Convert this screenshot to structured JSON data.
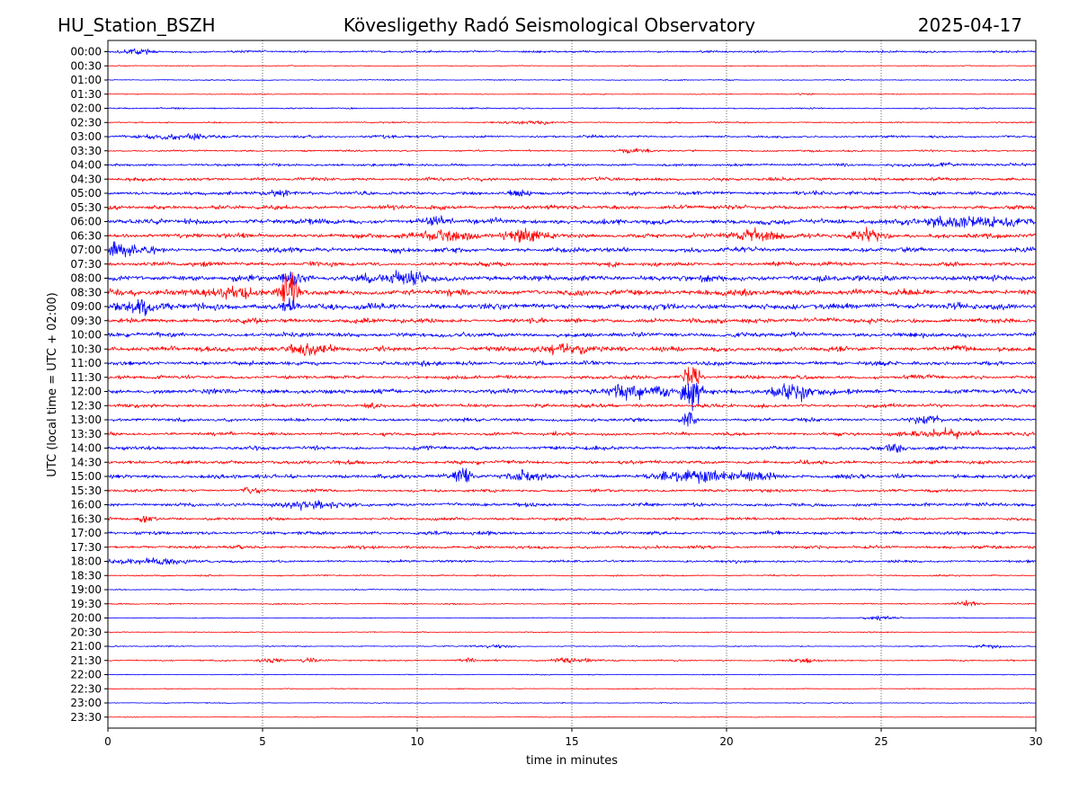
{
  "header": {
    "station": "HU_Station_BSZH",
    "observatory": "Kövesligethy Radó Seismological Observatory",
    "date": "2025-04-17"
  },
  "colors": {
    "even_trace": "#0000ff",
    "odd_trace": "#ff0000",
    "grid": "#000000",
    "background": "#ffffff"
  },
  "chart_data": {
    "type": "line",
    "xlabel": "time in minutes",
    "ylabel": "UTC (local time = UTC + 02:00)",
    "xlim": [
      0,
      30
    ],
    "x_ticks": [
      "0",
      "5",
      "10",
      "15",
      "20",
      "25",
      "30"
    ],
    "grid": "vertical dotted lines at 5, 10, 15, 20, 25",
    "row_labels": [
      "00:00",
      "00:30",
      "01:00",
      "01:30",
      "02:00",
      "02:30",
      "03:00",
      "03:30",
      "04:00",
      "04:30",
      "05:00",
      "05:30",
      "06:00",
      "06:30",
      "07:00",
      "07:30",
      "08:00",
      "08:30",
      "09:00",
      "09:30",
      "10:00",
      "10:30",
      "11:00",
      "11:30",
      "12:00",
      "12:30",
      "13:00",
      "13:30",
      "14:00",
      "14:30",
      "15:00",
      "15:30",
      "16:00",
      "16:30",
      "17:00",
      "17:30",
      "18:00",
      "18:30",
      "19:00",
      "19:30",
      "20:00",
      "20:30",
      "21:00",
      "21:30",
      "22:00",
      "22:30",
      "23:00",
      "23:30"
    ],
    "trace_colors": "alternating blue (full hour) and red (half hour)",
    "noise_level": [
      1.2,
      0.5,
      0.6,
      0.5,
      0.8,
      0.8,
      1.3,
      1.0,
      1.5,
      1.8,
      2.0,
      2.3,
      2.8,
      2.6,
      2.6,
      2.3,
      3.0,
      3.2,
      3.3,
      2.6,
      2.4,
      2.6,
      2.3,
      2.0,
      2.6,
      2.0,
      1.9,
      1.9,
      2.0,
      2.0,
      2.3,
      1.6,
      1.9,
      1.6,
      1.9,
      1.7,
      1.4,
      0.8,
      0.7,
      0.7,
      0.5,
      0.5,
      0.6,
      0.8,
      0.5,
      0.5,
      0.5,
      0.4
    ],
    "events": [
      {
        "row": 0,
        "minute": 0.9,
        "amp": 3,
        "width": 0.6
      },
      {
        "row": 3,
        "minute": 22.5,
        "amp": 1.5,
        "width": 0.3
      },
      {
        "row": 5,
        "minute": 13.8,
        "amp": 2,
        "width": 0.8
      },
      {
        "row": 6,
        "minute": 2.5,
        "amp": 3,
        "width": 1.2
      },
      {
        "row": 6,
        "minute": 9.0,
        "amp": 2,
        "width": 0.5
      },
      {
        "row": 7,
        "minute": 17.0,
        "amp": 2,
        "width": 0.5
      },
      {
        "row": 8,
        "minute": 27.0,
        "amp": 2,
        "width": 0.6
      },
      {
        "row": 10,
        "minute": 5.5,
        "amp": 3,
        "width": 0.5
      },
      {
        "row": 10,
        "minute": 13.2,
        "amp": 3,
        "width": 0.3
      },
      {
        "row": 12,
        "minute": 28.0,
        "amp": 5,
        "width": 2.0
      },
      {
        "row": 12,
        "minute": 10.5,
        "amp": 4,
        "width": 0.5
      },
      {
        "row": 13,
        "minute": 11.0,
        "amp": 7,
        "width": 0.8
      },
      {
        "row": 13,
        "minute": 13.5,
        "amp": 6,
        "width": 0.7
      },
      {
        "row": 13,
        "minute": 21.0,
        "amp": 6,
        "width": 0.8
      },
      {
        "row": 13,
        "minute": 24.5,
        "amp": 6,
        "width": 0.5
      },
      {
        "row": 14,
        "minute": 0.5,
        "amp": 6,
        "width": 0.8
      },
      {
        "row": 16,
        "minute": 6.0,
        "amp": 8,
        "width": 0.4
      },
      {
        "row": 16,
        "minute": 9.5,
        "amp": 6,
        "width": 1.0
      },
      {
        "row": 17,
        "minute": 5.9,
        "amp": 22,
        "width": 0.25
      },
      {
        "row": 17,
        "minute": 4.0,
        "amp": 5,
        "width": 1.0
      },
      {
        "row": 18,
        "minute": 1.0,
        "amp": 7,
        "width": 0.8
      },
      {
        "row": 18,
        "minute": 5.9,
        "amp": 8,
        "width": 0.3
      },
      {
        "row": 21,
        "minute": 6.5,
        "amp": 6,
        "width": 0.7
      },
      {
        "row": 21,
        "minute": 15.0,
        "amp": 5,
        "width": 1.0
      },
      {
        "row": 23,
        "minute": 18.9,
        "amp": 14,
        "width": 0.25
      },
      {
        "row": 24,
        "minute": 18.9,
        "amp": 22,
        "width": 0.3
      },
      {
        "row": 24,
        "minute": 17.0,
        "amp": 8,
        "width": 1.0
      },
      {
        "row": 24,
        "minute": 22.2,
        "amp": 8,
        "width": 0.8
      },
      {
        "row": 25,
        "minute": 8.5,
        "amp": 4,
        "width": 0.2
      },
      {
        "row": 26,
        "minute": 18.8,
        "amp": 12,
        "width": 0.2
      },
      {
        "row": 26,
        "minute": 26.5,
        "amp": 4,
        "width": 0.5
      },
      {
        "row": 27,
        "minute": 27.0,
        "amp": 5,
        "width": 1.0
      },
      {
        "row": 28,
        "minute": 25.4,
        "amp": 5,
        "width": 0.2
      },
      {
        "row": 30,
        "minute": 11.5,
        "amp": 9,
        "width": 0.3
      },
      {
        "row": 30,
        "minute": 13.5,
        "amp": 6,
        "width": 0.5
      },
      {
        "row": 30,
        "minute": 19.0,
        "amp": 6,
        "width": 1.2
      },
      {
        "row": 30,
        "minute": 21.0,
        "amp": 5,
        "width": 0.6
      },
      {
        "row": 31,
        "minute": 4.6,
        "amp": 3,
        "width": 0.3
      },
      {
        "row": 32,
        "minute": 6.5,
        "amp": 4,
        "width": 1.0
      },
      {
        "row": 33,
        "minute": 1.2,
        "amp": 4,
        "width": 0.3
      },
      {
        "row": 36,
        "minute": 1.5,
        "amp": 3,
        "width": 1.2
      },
      {
        "row": 39,
        "minute": 27.8,
        "amp": 3,
        "width": 0.4
      },
      {
        "row": 40,
        "minute": 25.0,
        "amp": 3,
        "width": 0.5
      },
      {
        "row": 42,
        "minute": 12.5,
        "amp": 2,
        "width": 0.6
      },
      {
        "row": 42,
        "minute": 28.5,
        "amp": 2,
        "width": 0.6
      },
      {
        "row": 43,
        "minute": 5.3,
        "amp": 3,
        "width": 0.4
      },
      {
        "row": 43,
        "minute": 6.5,
        "amp": 3,
        "width": 0.3
      },
      {
        "row": 43,
        "minute": 11.7,
        "amp": 3,
        "width": 0.3
      },
      {
        "row": 43,
        "minute": 15.0,
        "amp": 3,
        "width": 0.8
      },
      {
        "row": 43,
        "minute": 22.5,
        "amp": 3,
        "width": 0.4
      }
    ]
  }
}
